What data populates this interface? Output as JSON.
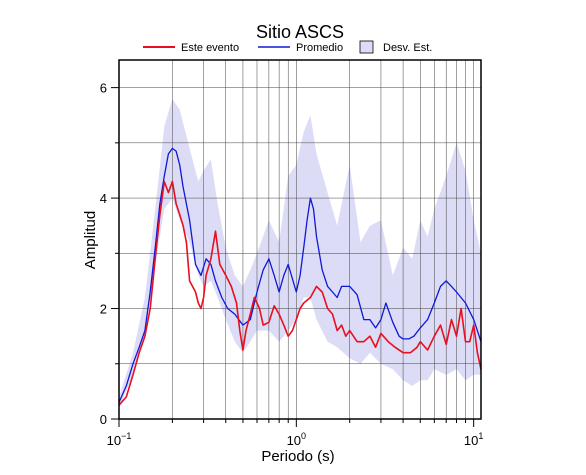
{
  "chart_data": {
    "type": "line",
    "title": "Sitio ASCS",
    "xlabel": "Periodo (s)",
    "ylabel": "Amplitud",
    "x_scale": "log",
    "xlim": [
      0.1,
      11
    ],
    "ylim": [
      0,
      6.5
    ],
    "grid": true,
    "legend_position": "top",
    "x_ticks": [
      {
        "base": "10",
        "exp": "−1"
      },
      {
        "base": "10",
        "exp": "0"
      },
      {
        "base": "10",
        "exp": "1"
      }
    ],
    "y_ticks": [
      "0",
      "2",
      "4",
      "6"
    ],
    "legend": [
      {
        "label": "Este evento",
        "kind": "line",
        "color": "#e8101e"
      },
      {
        "label": "Promedio",
        "kind": "line",
        "color": "#1018d8"
      },
      {
        "label": "Desv. Est.",
        "kind": "area",
        "color": "#dcdcf6"
      }
    ],
    "band": {
      "name": "Desv. Est.",
      "color": "#dcdcf6",
      "x": [
        0.1,
        0.12,
        0.14,
        0.16,
        0.18,
        0.2,
        0.22,
        0.25,
        0.28,
        0.3,
        0.33,
        0.36,
        0.4,
        0.45,
        0.5,
        0.55,
        0.6,
        0.7,
        0.8,
        0.9,
        1.0,
        1.1,
        1.2,
        1.3,
        1.5,
        1.7,
        2.0,
        2.3,
        2.6,
        3.0,
        3.5,
        4.0,
        4.5,
        5.0,
        5.5,
        6.0,
        7.0,
        8.0,
        9.0,
        10.0,
        11.0
      ],
      "upper": [
        0.4,
        1.2,
        2.2,
        3.8,
        5.3,
        5.8,
        5.6,
        4.9,
        4.3,
        4.5,
        4.7,
        3.9,
        3.1,
        2.6,
        2.4,
        2.7,
        3.0,
        3.6,
        3.2,
        4.4,
        4.6,
        5.2,
        5.5,
        4.8,
        4.1,
        3.5,
        4.6,
        3.2,
        3.5,
        3.6,
        2.6,
        3.1,
        2.9,
        3.6,
        3.3,
        3.8,
        4.4,
        5.0,
        4.5,
        3.6,
        3.0
      ],
      "lower": [
        0.2,
        0.8,
        1.5,
        2.8,
        3.8,
        4.0,
        3.6,
        3.2,
        2.6,
        2.4,
        2.5,
        2.2,
        1.8,
        1.4,
        1.2,
        1.4,
        1.6,
        1.6,
        1.4,
        1.6,
        1.8,
        2.2,
        2.2,
        1.8,
        1.4,
        1.3,
        1.1,
        1.0,
        1.2,
        1.0,
        0.9,
        0.7,
        0.6,
        0.7,
        0.7,
        0.9,
        0.8,
        0.9,
        0.7,
        0.8,
        0.8
      ]
    },
    "series": [
      {
        "name": "Promedio",
        "color": "#1018d8",
        "x": [
          0.1,
          0.11,
          0.12,
          0.13,
          0.14,
          0.15,
          0.16,
          0.17,
          0.18,
          0.19,
          0.2,
          0.21,
          0.22,
          0.23,
          0.25,
          0.27,
          0.29,
          0.31,
          0.33,
          0.35,
          0.38,
          0.41,
          0.45,
          0.5,
          0.55,
          0.6,
          0.65,
          0.7,
          0.75,
          0.8,
          0.85,
          0.9,
          1.0,
          1.05,
          1.1,
          1.15,
          1.2,
          1.25,
          1.3,
          1.4,
          1.5,
          1.6,
          1.7,
          1.8,
          2.0,
          2.2,
          2.4,
          2.6,
          2.8,
          3.0,
          3.2,
          3.5,
          3.8,
          4.0,
          4.3,
          4.6,
          5.0,
          5.5,
          6.0,
          6.5,
          7.0,
          7.5,
          8.0,
          9.0,
          10.0,
          11.0
        ],
        "y": [
          0.3,
          0.6,
          1.0,
          1.3,
          1.6,
          2.3,
          3.1,
          3.9,
          4.4,
          4.8,
          4.9,
          4.85,
          4.6,
          4.2,
          3.6,
          2.8,
          2.6,
          2.9,
          2.8,
          2.5,
          2.2,
          2.0,
          1.9,
          1.7,
          1.8,
          2.3,
          2.7,
          2.9,
          2.6,
          2.3,
          2.6,
          2.8,
          2.3,
          2.6,
          3.1,
          3.6,
          4.0,
          3.8,
          3.3,
          2.7,
          2.4,
          2.3,
          2.2,
          2.4,
          2.4,
          2.25,
          1.8,
          1.8,
          1.65,
          1.8,
          2.1,
          1.75,
          1.5,
          1.45,
          1.45,
          1.5,
          1.65,
          1.8,
          2.1,
          2.4,
          2.5,
          2.4,
          2.3,
          2.1,
          1.8,
          1.4
        ]
      },
      {
        "name": "Este evento",
        "color": "#e8101e",
        "x": [
          0.1,
          0.11,
          0.12,
          0.13,
          0.14,
          0.15,
          0.16,
          0.17,
          0.18,
          0.19,
          0.2,
          0.21,
          0.22,
          0.23,
          0.24,
          0.25,
          0.27,
          0.28,
          0.29,
          0.3,
          0.31,
          0.33,
          0.35,
          0.37,
          0.4,
          0.43,
          0.46,
          0.48,
          0.5,
          0.52,
          0.55,
          0.58,
          0.62,
          0.65,
          0.7,
          0.75,
          0.8,
          0.85,
          0.9,
          0.95,
          1.0,
          1.05,
          1.1,
          1.2,
          1.3,
          1.4,
          1.5,
          1.6,
          1.7,
          1.8,
          1.9,
          2.0,
          2.2,
          2.4,
          2.6,
          2.8,
          3.0,
          3.3,
          3.6,
          4.0,
          4.4,
          4.8,
          5.0,
          5.5,
          6.0,
          6.5,
          7.0,
          7.5,
          8.0,
          8.5,
          9.0,
          9.5,
          10.0,
          10.5,
          11.0
        ],
        "y": [
          0.25,
          0.4,
          0.8,
          1.2,
          1.5,
          2.0,
          2.9,
          3.7,
          4.3,
          4.1,
          4.3,
          3.9,
          3.7,
          3.5,
          3.2,
          2.5,
          2.3,
          2.1,
          2.0,
          2.2,
          2.6,
          2.9,
          3.4,
          2.8,
          2.6,
          2.4,
          2.1,
          1.6,
          1.25,
          1.6,
          1.9,
          2.2,
          2.0,
          1.7,
          1.75,
          2.05,
          1.9,
          1.7,
          1.5,
          1.6,
          1.8,
          2.0,
          2.1,
          2.2,
          2.4,
          2.3,
          2.0,
          1.9,
          1.6,
          1.7,
          1.5,
          1.6,
          1.4,
          1.4,
          1.5,
          1.3,
          1.55,
          1.4,
          1.3,
          1.2,
          1.2,
          1.3,
          1.4,
          1.25,
          1.5,
          1.7,
          1.35,
          1.8,
          1.5,
          2.0,
          1.4,
          1.4,
          1.7,
          1.2,
          0.9
        ]
      }
    ]
  }
}
